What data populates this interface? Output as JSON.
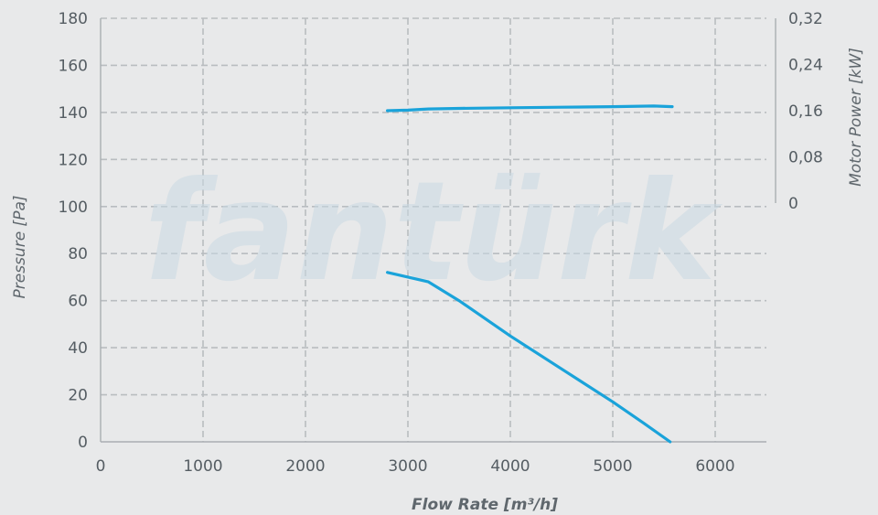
{
  "chart_data": {
    "type": "line",
    "watermark": "fantürk",
    "xlabel": "Flow Rate [m³/h]",
    "ylabel": "Pressure [Pa]",
    "y2label": "Motor Power [kW]",
    "xlim": [
      0,
      6500
    ],
    "ylim": [
      0,
      180
    ],
    "y2lim": [
      0,
      0.32
    ],
    "x_ticks": [
      "0",
      "1000",
      "2000",
      "3000",
      "4000",
      "5000",
      "6000"
    ],
    "y_ticks": [
      "0",
      "20",
      "40",
      "60",
      "80",
      "100",
      "120",
      "140",
      "160",
      "180"
    ],
    "y2_ticks": [
      "0",
      "0,08",
      "0,16",
      "0,24",
      "0,32"
    ],
    "grid": true,
    "series": [
      {
        "axis": "left",
        "color": "#1aa3da",
        "x": [
          2800,
          3000,
          3200,
          3500,
          4000,
          4500,
          5000,
          5300,
          5560
        ],
        "y": [
          72,
          70,
          68,
          60,
          45,
          31,
          17,
          8,
          0
        ]
      },
      {
        "axis": "right",
        "color": "#1aa3da",
        "x": [
          2800,
          3000,
          3200,
          3500,
          4000,
          4500,
          5000,
          5400,
          5580
        ],
        "y": [
          0.16,
          0.161,
          0.163,
          0.164,
          0.165,
          0.166,
          0.167,
          0.168,
          0.167
        ]
      }
    ]
  }
}
